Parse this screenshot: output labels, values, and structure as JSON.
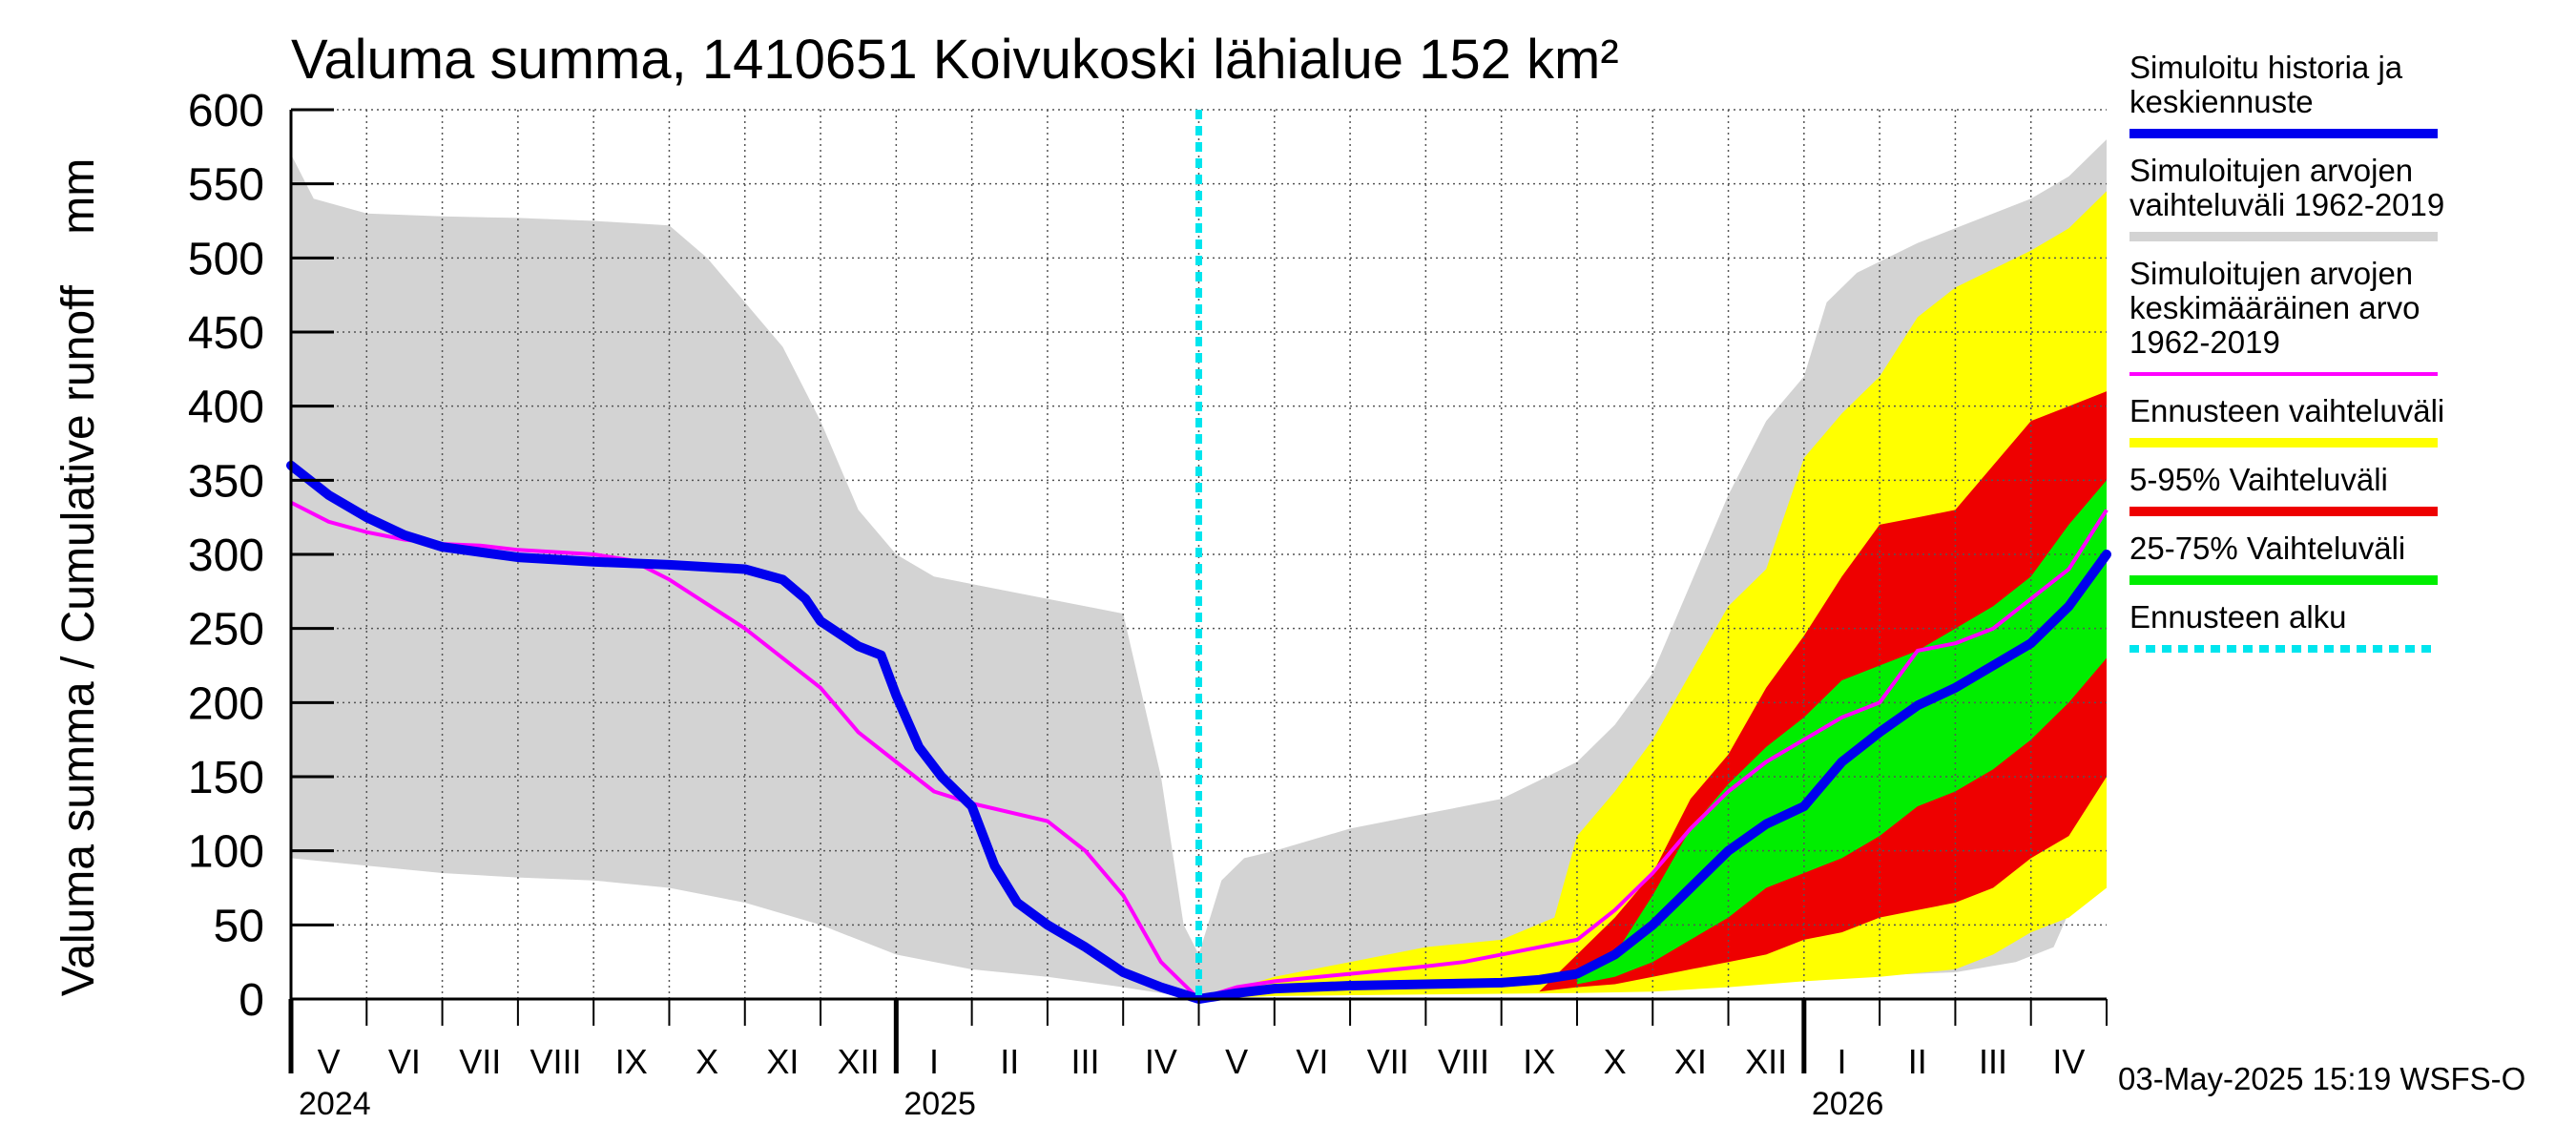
{
  "title": "Valuma summa, 1410651 Koivukoski lähialue 152 km²",
  "y_axis_label": "Valuma summa / Cumulative runoff    mm",
  "footer": "03-May-2025 15:19 WSFS-O",
  "colors": {
    "history": "#0000ee",
    "hist_range": "#d3d3d3",
    "mean": "#ff00ff",
    "forecast_range": "#ffff00",
    "p5_95": "#ee0000",
    "p25_75": "#00ee00",
    "forecast_start": "#00e5ee"
  },
  "legend": [
    {
      "lines": [
        "Simuloitu historia ja",
        "keskiennuste"
      ],
      "swatch": "history",
      "style": "thick"
    },
    {
      "lines": [
        "Simuloitujen arvojen",
        "vaihteluväli 1962-2019"
      ],
      "swatch": "hist_range",
      "style": "thick"
    },
    {
      "lines": [
        "Simuloitujen arvojen",
        "keskimääräinen arvo",
        "   1962-2019"
      ],
      "swatch": "mean",
      "style": "thin"
    },
    {
      "lines": [
        "Ennusteen vaihteluväli"
      ],
      "swatch": "forecast_range",
      "style": "thick"
    },
    {
      "lines": [
        "5-95% Vaihteluväli"
      ],
      "swatch": "p5_95",
      "style": "thick"
    },
    {
      "lines": [
        "25-75% Vaihteluväli"
      ],
      "swatch": "p25_75",
      "style": "thick"
    },
    {
      "lines": [
        "Ennusteen alku"
      ],
      "swatch": "forecast_start",
      "style": "dashed"
    }
  ],
  "chart_data": {
    "type": "area",
    "ylim": [
      0,
      600
    ],
    "yticks": [
      0,
      50,
      100,
      150,
      200,
      250,
      300,
      350,
      400,
      450,
      500,
      550,
      600
    ],
    "x_unit": "months since 2024-05-01",
    "xlim": [
      0,
      24
    ],
    "month_labels": [
      "V",
      "VI",
      "VII",
      "VIII",
      "IX",
      "X",
      "XI",
      "XII",
      "I",
      "II",
      "III",
      "IV",
      "V",
      "VI",
      "VII",
      "VIII",
      "IX",
      "X",
      "XI",
      "XII",
      "I",
      "II",
      "III",
      "IV"
    ],
    "year_labels": [
      {
        "label": "2024",
        "x": 0
      },
      {
        "label": "2025",
        "x": 8
      },
      {
        "label": "2026",
        "x": 20
      }
    ],
    "forecast_start": 12,
    "series": {
      "hist_range": {
        "name": "Simuloitujen arvojen vaihteluväli 1962-2019",
        "upper": [
          [
            0,
            570
          ],
          [
            0.3,
            540
          ],
          [
            1,
            530
          ],
          [
            2,
            528
          ],
          [
            3,
            527
          ],
          [
            4,
            525
          ],
          [
            5,
            522
          ],
          [
            5.5,
            500
          ],
          [
            6,
            470
          ],
          [
            6.5,
            440
          ],
          [
            7,
            390
          ],
          [
            7.5,
            330
          ],
          [
            8,
            300
          ],
          [
            8.5,
            285
          ],
          [
            9,
            280
          ],
          [
            10,
            270
          ],
          [
            11,
            260
          ],
          [
            11.5,
            150
          ],
          [
            11.8,
            50
          ],
          [
            12,
            30
          ],
          [
            12.3,
            80
          ],
          [
            12.6,
            95
          ],
          [
            13,
            100
          ],
          [
            14,
            115
          ],
          [
            15,
            125
          ],
          [
            16,
            135
          ],
          [
            17,
            160
          ],
          [
            17.5,
            185
          ],
          [
            18,
            220
          ],
          [
            18.5,
            280
          ],
          [
            19,
            340
          ],
          [
            19.5,
            390
          ],
          [
            20,
            420
          ],
          [
            20.3,
            470
          ],
          [
            20.7,
            490
          ],
          [
            21.5,
            510
          ],
          [
            22,
            520
          ],
          [
            23,
            540
          ],
          [
            23.5,
            555
          ],
          [
            24,
            580
          ]
        ],
        "lower": [
          [
            0,
            95
          ],
          [
            1,
            90
          ],
          [
            2,
            85
          ],
          [
            3,
            82
          ],
          [
            4,
            80
          ],
          [
            5,
            75
          ],
          [
            6,
            65
          ],
          [
            7,
            50
          ],
          [
            8,
            30
          ],
          [
            9,
            20
          ],
          [
            10,
            15
          ],
          [
            11,
            8
          ],
          [
            12,
            0
          ],
          [
            13,
            3
          ],
          [
            14,
            5
          ],
          [
            15,
            7
          ],
          [
            16,
            8
          ],
          [
            17,
            10
          ],
          [
            18,
            12
          ],
          [
            19,
            14
          ],
          [
            20,
            15
          ],
          [
            21,
            16
          ],
          [
            22,
            18
          ],
          [
            22.8,
            25
          ],
          [
            23.3,
            35
          ],
          [
            23.6,
            70
          ],
          [
            24,
            80
          ]
        ]
      },
      "forecast_range": {
        "name": "Ennusteen vaihteluväli",
        "upper": [
          [
            12,
            0
          ],
          [
            13,
            15
          ],
          [
            14,
            25
          ],
          [
            15,
            35
          ],
          [
            16,
            40
          ],
          [
            16.7,
            55
          ],
          [
            17,
            110
          ],
          [
            17.5,
            140
          ],
          [
            18,
            175
          ],
          [
            18.5,
            220
          ],
          [
            19,
            265
          ],
          [
            19.5,
            290
          ],
          [
            20,
            365
          ],
          [
            20.5,
            395
          ],
          [
            21,
            420
          ],
          [
            21.5,
            460
          ],
          [
            22,
            480
          ],
          [
            23,
            505
          ],
          [
            23.5,
            520
          ],
          [
            24,
            545
          ]
        ],
        "lower": [
          [
            12,
            0
          ],
          [
            13,
            2
          ],
          [
            15,
            3
          ],
          [
            17,
            4
          ],
          [
            18,
            5
          ],
          [
            19,
            8
          ],
          [
            20,
            12
          ],
          [
            21,
            15
          ],
          [
            22,
            20
          ],
          [
            22.5,
            30
          ],
          [
            23,
            45
          ],
          [
            23.5,
            55
          ],
          [
            24,
            75
          ]
        ]
      },
      "p5_95": {
        "name": "5-95% Vaihteluväli",
        "upper": [
          [
            16.5,
            5
          ],
          [
            17,
            30
          ],
          [
            17.5,
            55
          ],
          [
            18,
            85
          ],
          [
            18.5,
            135
          ],
          [
            19,
            165
          ],
          [
            19.5,
            210
          ],
          [
            20,
            245
          ],
          [
            20.5,
            285
          ],
          [
            21,
            320
          ],
          [
            21.5,
            325
          ],
          [
            22,
            330
          ],
          [
            22.5,
            360
          ],
          [
            23,
            390
          ],
          [
            23.5,
            400
          ],
          [
            24,
            410
          ]
        ],
        "lower": [
          [
            16.5,
            5
          ],
          [
            17,
            8
          ],
          [
            17.5,
            10
          ],
          [
            18,
            15
          ],
          [
            18.5,
            20
          ],
          [
            19,
            25
          ],
          [
            19.5,
            30
          ],
          [
            20,
            40
          ],
          [
            20.5,
            45
          ],
          [
            21,
            55
          ],
          [
            21.5,
            60
          ],
          [
            22,
            65
          ],
          [
            22.5,
            75
          ],
          [
            23,
            95
          ],
          [
            23.5,
            110
          ],
          [
            24,
            150
          ]
        ]
      },
      "p25_75": {
        "name": "25-75% Vaihteluväli",
        "upper": [
          [
            17,
            20
          ],
          [
            17.5,
            30
          ],
          [
            18,
            70
          ],
          [
            18.5,
            115
          ],
          [
            19,
            145
          ],
          [
            19.5,
            170
          ],
          [
            20,
            190
          ],
          [
            20.5,
            215
          ],
          [
            21,
            225
          ],
          [
            21.5,
            235
          ],
          [
            22,
            250
          ],
          [
            22.5,
            265
          ],
          [
            23,
            285
          ],
          [
            23.5,
            320
          ],
          [
            24,
            350
          ]
        ],
        "lower": [
          [
            17,
            10
          ],
          [
            17.5,
            15
          ],
          [
            18,
            25
          ],
          [
            18.5,
            40
          ],
          [
            19,
            55
          ],
          [
            19.5,
            75
          ],
          [
            20,
            85
          ],
          [
            20.5,
            95
          ],
          [
            21,
            110
          ],
          [
            21.5,
            130
          ],
          [
            22,
            140
          ],
          [
            22.5,
            155
          ],
          [
            23,
            175
          ],
          [
            23.5,
            200
          ],
          [
            24,
            230
          ]
        ]
      },
      "mean": {
        "name": "Simuloitujen arvojen keskimääräinen arvo 1962-2019",
        "points": [
          [
            0,
            335
          ],
          [
            0.5,
            322
          ],
          [
            1,
            315
          ],
          [
            1.5,
            310
          ],
          [
            2,
            307
          ],
          [
            2.5,
            306
          ],
          [
            3,
            303
          ],
          [
            4,
            300
          ],
          [
            4.5,
            296
          ],
          [
            5,
            283
          ],
          [
            6,
            250
          ],
          [
            7,
            210
          ],
          [
            7.5,
            180
          ],
          [
            8,
            160
          ],
          [
            8.5,
            140
          ],
          [
            9,
            132
          ],
          [
            10,
            120
          ],
          [
            10.5,
            100
          ],
          [
            11,
            70
          ],
          [
            11.5,
            25
          ],
          [
            12,
            0
          ],
          [
            12.5,
            8
          ],
          [
            13,
            12
          ],
          [
            14,
            17
          ],
          [
            15,
            22
          ],
          [
            15.5,
            25
          ],
          [
            16,
            30
          ],
          [
            17,
            40
          ],
          [
            17.5,
            60
          ],
          [
            18,
            85
          ],
          [
            18.5,
            115
          ],
          [
            19,
            140
          ],
          [
            19.5,
            160
          ],
          [
            20,
            175
          ],
          [
            20.5,
            190
          ],
          [
            21,
            200
          ],
          [
            21.5,
            235
          ],
          [
            22,
            240
          ],
          [
            22.5,
            250
          ],
          [
            23,
            270
          ],
          [
            23.5,
            290
          ],
          [
            24,
            330
          ]
        ]
      },
      "history": {
        "name": "Simuloitu historia ja keskiennuste",
        "points": [
          [
            0,
            360
          ],
          [
            0.5,
            340
          ],
          [
            1,
            325
          ],
          [
            1.5,
            313
          ],
          [
            2,
            305
          ],
          [
            3,
            298
          ],
          [
            4,
            295
          ],
          [
            5,
            293
          ],
          [
            6,
            290
          ],
          [
            6.5,
            283
          ],
          [
            6.8,
            270
          ],
          [
            7,
            255
          ],
          [
            7.5,
            238
          ],
          [
            7.8,
            232
          ],
          [
            8,
            205
          ],
          [
            8.3,
            170
          ],
          [
            8.6,
            150
          ],
          [
            9,
            130
          ],
          [
            9.3,
            90
          ],
          [
            9.6,
            65
          ],
          [
            10,
            50
          ],
          [
            10.5,
            35
          ],
          [
            11,
            18
          ],
          [
            11.5,
            8
          ],
          [
            12,
            0
          ],
          [
            12.5,
            4
          ],
          [
            13,
            7
          ],
          [
            14,
            9
          ],
          [
            15,
            10
          ],
          [
            16,
            11
          ],
          [
            16.5,
            13
          ],
          [
            17,
            17
          ],
          [
            17.5,
            30
          ],
          [
            18,
            50
          ],
          [
            18.5,
            75
          ],
          [
            19,
            100
          ],
          [
            19.5,
            118
          ],
          [
            20,
            130
          ],
          [
            20.5,
            160
          ],
          [
            21,
            180
          ],
          [
            21.5,
            198
          ],
          [
            22,
            210
          ],
          [
            22.5,
            225
          ],
          [
            23,
            240
          ],
          [
            23.5,
            265
          ],
          [
            24,
            300
          ]
        ]
      }
    }
  }
}
